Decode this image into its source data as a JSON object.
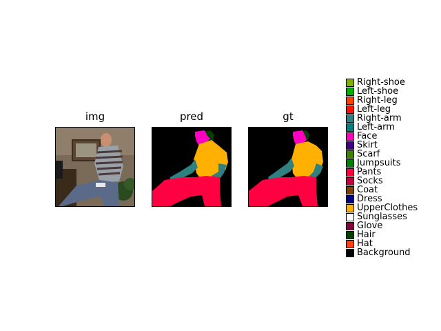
{
  "panels": {
    "img_title": "img",
    "pred_title": "pred",
    "gt_title": "gt"
  },
  "legend": [
    {
      "label": "Right-shoe",
      "color": "#80b000"
    },
    {
      "label": "Left-shoe",
      "color": "#00b000"
    },
    {
      "label": "Right-leg",
      "color": "#ff4000"
    },
    {
      "label": "Left-leg",
      "color": "#ff1000"
    },
    {
      "label": "Right-arm",
      "color": "#2f8080"
    },
    {
      "label": "Left-arm",
      "color": "#008080"
    },
    {
      "label": "Face",
      "color": "#ff00c0"
    },
    {
      "label": "Skirt",
      "color": "#400080"
    },
    {
      "label": "Scarf",
      "color": "#408000"
    },
    {
      "label": "Jumpsuits",
      "color": "#008000"
    },
    {
      "label": "Pants",
      "color": "#ff0040"
    },
    {
      "label": "Socks",
      "color": "#c00040"
    },
    {
      "label": "Coat",
      "color": "#804000"
    },
    {
      "label": "Dress",
      "color": "#000080"
    },
    {
      "label": "UpperClothes",
      "color": "#ffb000"
    },
    {
      "label": "Sunglasses",
      "color": "#ffffff"
    },
    {
      "label": "Glove",
      "color": "#800040"
    },
    {
      "label": "Hair",
      "color": "#004000"
    },
    {
      "label": "Hat",
      "color": "#ff4010"
    },
    {
      "label": "Background",
      "color": "#000000"
    }
  ],
  "colors": {
    "background": "#000000",
    "hair": "#004000",
    "face": "#ff00c0",
    "upper_clothes": "#ffb000",
    "arm": "#2f8080",
    "pants": "#ff0040"
  }
}
